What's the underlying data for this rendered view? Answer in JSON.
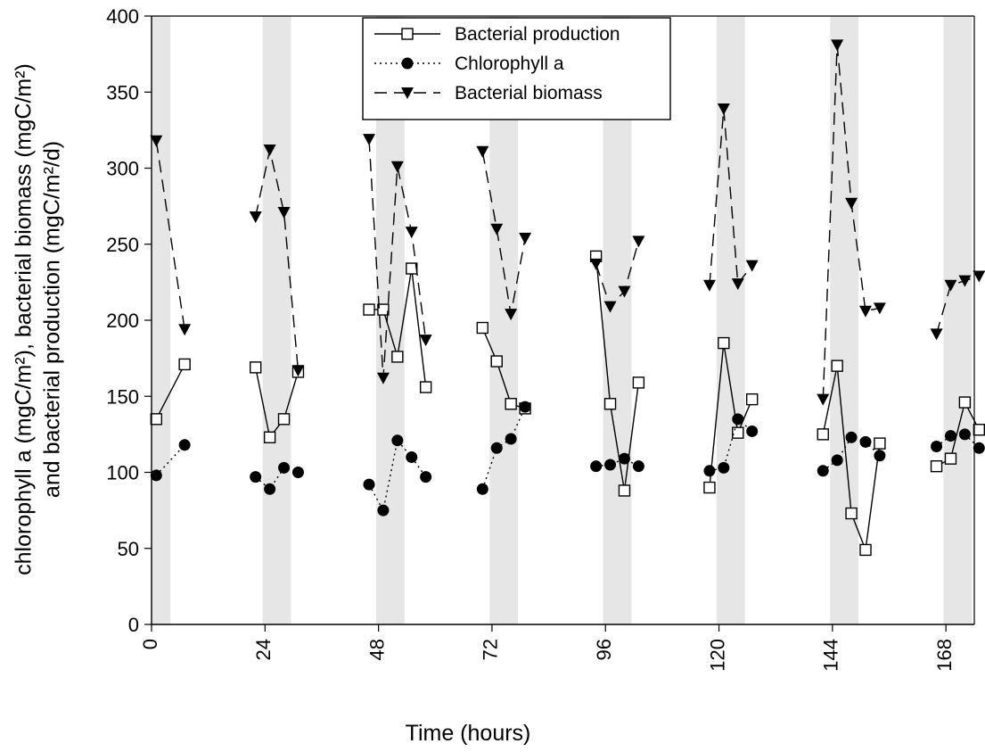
{
  "chart_data": {
    "type": "line",
    "title": "",
    "xlabel": "Time (hours)",
    "ylabel": [
      "chlorophyll a (mgC/m²), bacterial biomass (mgC/m²)",
      "and bacterial production (mgC/m²/d)"
    ],
    "xlim": [
      0,
      174
    ],
    "ylim": [
      0,
      400
    ],
    "x_ticks": [
      0,
      24,
      48,
      72,
      96,
      120,
      144,
      168
    ],
    "y_ticks": [
      0,
      50,
      100,
      150,
      200,
      250,
      300,
      350,
      400
    ],
    "grid": false,
    "legend_position": "top-center",
    "dark_periods": [
      [
        0,
        4
      ],
      [
        23.5,
        29.5
      ],
      [
        47.5,
        53.5
      ],
      [
        71.5,
        77.5
      ],
      [
        95.5,
        101.5
      ],
      [
        119.5,
        125.5
      ],
      [
        143.5,
        149.5
      ],
      [
        167.5,
        173.5
      ]
    ],
    "series": [
      {
        "name": "Bacterial production",
        "marker": "open-square",
        "line": "solid",
        "segments": [
          [
            [
              1,
              135
            ],
            [
              7,
              171
            ]
          ],
          [
            [
              22,
              169
            ],
            [
              25,
              123
            ],
            [
              28,
              135
            ],
            [
              31,
              166
            ]
          ],
          [
            [
              46,
              207
            ],
            [
              49,
              207
            ],
            [
              52,
              176
            ],
            [
              55,
              234
            ],
            [
              58,
              156
            ]
          ],
          [
            [
              70,
              195
            ],
            [
              73,
              173
            ],
            [
              76,
              145
            ],
            [
              79,
              142
            ]
          ],
          [
            [
              94,
              242
            ],
            [
              97,
              145
            ],
            [
              100,
              88
            ],
            [
              103,
              159
            ]
          ],
          [
            [
              118,
              90
            ],
            [
              121,
              185
            ],
            [
              124,
              126
            ],
            [
              127,
              148
            ]
          ],
          [
            [
              142,
              125
            ],
            [
              145,
              170
            ],
            [
              148,
              73
            ],
            [
              151,
              49
            ],
            [
              154,
              119
            ]
          ],
          [
            [
              166,
              104
            ],
            [
              169,
              109
            ],
            [
              172,
              146
            ],
            [
              175,
              128
            ]
          ]
        ]
      },
      {
        "name": "Chlorophyll a",
        "marker": "filled-circle",
        "line": "dotted",
        "segments": [
          [
            [
              1,
              98
            ],
            [
              7,
              118
            ]
          ],
          [
            [
              22,
              97
            ],
            [
              25,
              89
            ],
            [
              28,
              103
            ],
            [
              31,
              100
            ]
          ],
          [
            [
              46,
              92
            ],
            [
              49,
              75
            ],
            [
              52,
              121
            ],
            [
              55,
              110
            ],
            [
              58,
              97
            ]
          ],
          [
            [
              70,
              89
            ],
            [
              73,
              116
            ],
            [
              76,
              122
            ],
            [
              79,
              143
            ]
          ],
          [
            [
              94,
              104
            ],
            [
              97,
              105
            ],
            [
              100,
              109
            ],
            [
              103,
              104
            ]
          ],
          [
            [
              118,
              101
            ],
            [
              121,
              103
            ],
            [
              124,
              135
            ],
            [
              127,
              127
            ]
          ],
          [
            [
              142,
              101
            ],
            [
              145,
              108
            ],
            [
              148,
              123
            ],
            [
              151,
              120
            ],
            [
              154,
              111
            ]
          ],
          [
            [
              166,
              117
            ],
            [
              169,
              124
            ],
            [
              172,
              125
            ],
            [
              175,
              116
            ]
          ]
        ]
      },
      {
        "name": "Bacterial biomass",
        "marker": "filled-triangle-down",
        "line": "dashed",
        "segments": [
          [
            [
              1,
              318
            ],
            [
              7,
              194
            ]
          ],
          [
            [
              22,
              268
            ],
            [
              25,
              312
            ],
            [
              28,
              271
            ],
            [
              31,
              167
            ]
          ],
          [
            [
              46,
              319
            ],
            [
              49,
              162
            ],
            [
              52,
              301
            ],
            [
              55,
              258
            ],
            [
              58,
              187
            ]
          ],
          [
            [
              70,
              311
            ],
            [
              73,
              260
            ],
            [
              76,
              204
            ],
            [
              79,
              254
            ]
          ],
          [
            [
              94,
              237
            ],
            [
              97,
              209
            ],
            [
              100,
              219
            ],
            [
              103,
              252
            ]
          ],
          [
            [
              118,
              223
            ],
            [
              121,
              339
            ],
            [
              124,
              224
            ],
            [
              127,
              236
            ]
          ],
          [
            [
              142,
              148
            ],
            [
              145,
              381
            ],
            [
              148,
              277
            ],
            [
              151,
              206
            ],
            [
              154,
              208
            ]
          ],
          [
            [
              166,
              191
            ],
            [
              169,
              223
            ],
            [
              172,
              226
            ],
            [
              175,
              229
            ]
          ]
        ]
      }
    ]
  }
}
